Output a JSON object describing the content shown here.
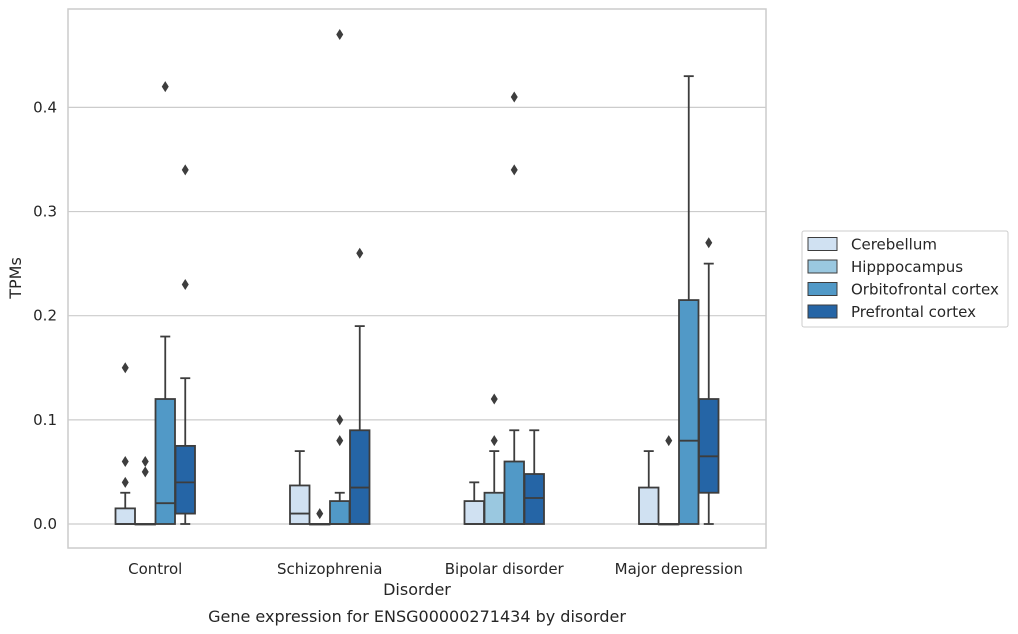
{
  "chart_data": {
    "type": "box",
    "caption": "Gene expression for ENSG00000271434 by disorder",
    "xlabel": "Disorder",
    "ylabel": "TPMs",
    "ylim": [
      -0.022,
      0.493
    ],
    "yticks": [
      0.0,
      0.1,
      0.2,
      0.3,
      0.4
    ],
    "ytick_labels": [
      "0.0",
      "0.1",
      "0.2",
      "0.3",
      "0.4"
    ],
    "grid": "horizontal",
    "legend_position": "right",
    "categories": [
      "Control",
      "Schizophrenia",
      "Bipolar disorder",
      "Major depression"
    ],
    "series": [
      {
        "name": "Cerebellum",
        "color": "#d0e1f2",
        "boxes": [
          {
            "q1": 0.0,
            "median": 0.0,
            "q3": 0.015,
            "whisker_low": 0.0,
            "whisker_high": 0.03,
            "outliers": [
              0.04,
              0.06,
              0.15
            ]
          },
          {
            "q1": 0.0,
            "median": 0.01,
            "q3": 0.037,
            "whisker_low": 0.0,
            "whisker_high": 0.07,
            "outliers": []
          },
          {
            "q1": 0.0,
            "median": 0.0,
            "q3": 0.022,
            "whisker_low": 0.0,
            "whisker_high": 0.04,
            "outliers": []
          },
          {
            "q1": 0.0,
            "median": 0.0,
            "q3": 0.035,
            "whisker_low": 0.0,
            "whisker_high": 0.07,
            "outliers": []
          }
        ]
      },
      {
        "name": "Hipppocampus",
        "color": "#9ac8e0",
        "boxes": [
          {
            "q1": 0.0,
            "median": 0.0,
            "q3": 0.0,
            "whisker_low": 0.0,
            "whisker_high": 0.0,
            "outliers": [
              0.05,
              0.06
            ]
          },
          {
            "q1": 0.0,
            "median": 0.0,
            "q3": 0.0,
            "whisker_low": 0.0,
            "whisker_high": 0.0,
            "outliers": [
              0.01
            ]
          },
          {
            "q1": 0.0,
            "median": 0.0,
            "q3": 0.03,
            "whisker_low": 0.0,
            "whisker_high": 0.07,
            "outliers": [
              0.08,
              0.12
            ]
          },
          {
            "q1": 0.0,
            "median": 0.0,
            "q3": 0.0,
            "whisker_low": 0.0,
            "whisker_high": 0.0,
            "outliers": [
              0.08
            ]
          }
        ]
      },
      {
        "name": "Orbitofrontal cortex",
        "color": "#5199c7",
        "boxes": [
          {
            "q1": 0.0,
            "median": 0.02,
            "q3": 0.12,
            "whisker_low": 0.0,
            "whisker_high": 0.18,
            "outliers": [
              0.42
            ]
          },
          {
            "q1": 0.0,
            "median": 0.0,
            "q3": 0.022,
            "whisker_low": 0.0,
            "whisker_high": 0.03,
            "outliers": [
              0.08,
              0.1,
              0.47
            ]
          },
          {
            "q1": 0.0,
            "median": 0.0,
            "q3": 0.06,
            "whisker_low": 0.0,
            "whisker_high": 0.09,
            "outliers": [
              0.34,
              0.41
            ]
          },
          {
            "q1": 0.0,
            "median": 0.08,
            "q3": 0.215,
            "whisker_low": 0.0,
            "whisker_high": 0.43,
            "outliers": []
          }
        ]
      },
      {
        "name": "Prefrontal cortex",
        "color": "#2565a6",
        "boxes": [
          {
            "q1": 0.01,
            "median": 0.04,
            "q3": 0.075,
            "whisker_low": 0.0,
            "whisker_high": 0.14,
            "outliers": [
              0.23,
              0.34
            ]
          },
          {
            "q1": 0.0,
            "median": 0.035,
            "q3": 0.09,
            "whisker_low": 0.0,
            "whisker_high": 0.19,
            "outliers": [
              0.26
            ]
          },
          {
            "q1": 0.0,
            "median": 0.025,
            "q3": 0.048,
            "whisker_low": 0.0,
            "whisker_high": 0.09,
            "outliers": []
          },
          {
            "q1": 0.03,
            "median": 0.065,
            "q3": 0.12,
            "whisker_low": 0.0,
            "whisker_high": 0.25,
            "outliers": [
              0.27
            ]
          }
        ]
      }
    ]
  }
}
